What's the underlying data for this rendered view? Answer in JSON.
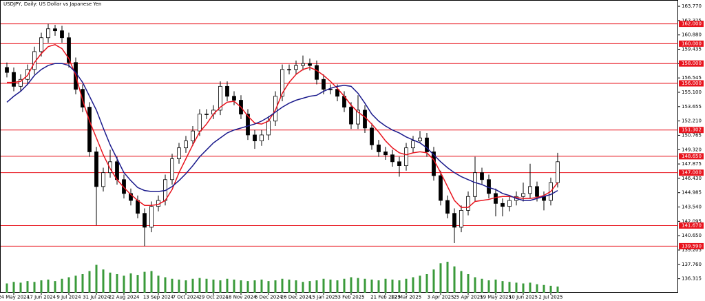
{
  "chart_data": {
    "type": "candlestick",
    "title": "USDJPY, Daily:  US Dollar vs Japanese Yen",
    "categories": [
      null,
      "24 May 2024",
      null,
      null,
      null,
      "17 Jun 2024",
      null,
      null,
      null,
      "9 Jul 2024",
      null,
      null,
      null,
      "31 Jul 2024",
      null,
      null,
      null,
      "22 Aug 2024",
      null,
      null,
      null,
      null,
      "13 Sep 2024",
      null,
      null,
      null,
      "7 Oct 2024",
      null,
      null,
      null,
      "29 Oct 2024",
      null,
      null,
      null,
      "18 Nov 2024",
      null,
      null,
      null,
      "6 Dec 2024",
      null,
      null,
      null,
      "26 Dec 2024",
      null,
      null,
      null,
      "15 Jan 2025",
      null,
      null,
      null,
      "3 Feb 2025",
      null,
      null,
      null,
      null,
      "21 Feb 2025",
      null,
      null,
      "12 Mar 2025",
      null,
      null,
      null,
      null,
      "3 Apr 2025",
      null,
      null,
      null,
      "25 Apr 2025",
      null,
      null,
      null,
      "19 May 2025",
      null,
      null,
      null,
      "10 Jun 2025",
      null,
      null,
      null,
      "2 Jul 2025",
      null
    ],
    "open": [
      157.6,
      157.1,
      155.7,
      156.4,
      157.4,
      159.2,
      160.6,
      161.5,
      161.3,
      160.6,
      158.1,
      155.4,
      153.6,
      149.1,
      145.6,
      147.0,
      148.1,
      146.3,
      144.9,
      144.2,
      142.9,
      141.5,
      143.6,
      144.2,
      146.3,
      148.4,
      149.5,
      150.2,
      151.2,
      152.9,
      152.9,
      153.3,
      155.7,
      154.7,
      154.3,
      152.9,
      150.8,
      150.2,
      150.8,
      152.2,
      154.7,
      157.4,
      157.4,
      157.8,
      158.0,
      157.8,
      156.4,
      155.4,
      155.4,
      154.7,
      153.6,
      151.9,
      153.3,
      151.5,
      149.8,
      149.1,
      148.8,
      148.1,
      147.7,
      149.5,
      150.2,
      150.5,
      149.1,
      146.7,
      144.2,
      142.9,
      141.5,
      143.2,
      144.6,
      147.0,
      146.3,
      144.9,
      143.9,
      143.6,
      144.2,
      144.6,
      144.9,
      145.6,
      144.6,
      144.2,
      146.0
    ],
    "high": [
      158.1,
      157.6,
      156.9,
      157.9,
      159.7,
      161.1,
      162.0,
      161.9,
      161.8,
      161.1,
      158.6,
      155.9,
      154.1,
      149.6,
      147.5,
      149.3,
      148.6,
      146.8,
      145.4,
      144.7,
      143.4,
      144.1,
      144.7,
      146.8,
      148.9,
      150.0,
      150.7,
      151.7,
      153.4,
      153.4,
      153.8,
      156.2,
      156.2,
      155.2,
      154.8,
      153.4,
      151.3,
      151.3,
      152.7,
      155.2,
      157.9,
      157.9,
      158.3,
      158.8,
      158.5,
      158.3,
      156.9,
      155.9,
      155.9,
      155.2,
      154.1,
      154.8,
      153.8,
      152.0,
      150.3,
      149.6,
      149.3,
      148.6,
      150.0,
      150.7,
      151.2,
      151.0,
      149.6,
      147.2,
      144.7,
      143.4,
      143.7,
      145.1,
      148.6,
      147.5,
      146.8,
      145.4,
      144.4,
      144.7,
      145.1,
      146.0,
      147.9,
      146.1,
      145.1,
      146.5,
      149.0
    ],
    "low": [
      156.6,
      155.2,
      155.2,
      155.9,
      156.9,
      158.7,
      160.1,
      160.8,
      160.1,
      157.6,
      154.9,
      153.1,
      148.6,
      141.7,
      145.1,
      146.5,
      145.8,
      144.4,
      143.7,
      142.4,
      139.6,
      141.0,
      143.1,
      143.7,
      145.8,
      147.9,
      149.0,
      149.7,
      150.7,
      152.4,
      152.4,
      152.8,
      154.2,
      153.8,
      152.4,
      150.3,
      149.4,
      149.7,
      150.3,
      151.7,
      154.2,
      156.9,
      156.9,
      157.3,
      157.3,
      155.9,
      154.9,
      154.9,
      154.2,
      153.1,
      151.4,
      151.4,
      151.0,
      149.3,
      148.6,
      148.3,
      147.6,
      146.6,
      147.2,
      149.0,
      150.0,
      148.6,
      146.2,
      143.7,
      142.4,
      139.9,
      141.0,
      142.7,
      144.1,
      145.8,
      144.4,
      142.6,
      142.6,
      143.1,
      143.7,
      144.1,
      144.4,
      144.1,
      143.2,
      143.7,
      145.5
    ],
    "close": [
      157.1,
      155.7,
      156.4,
      157.4,
      159.2,
      160.6,
      161.5,
      161.3,
      160.6,
      158.1,
      155.4,
      153.6,
      149.1,
      145.6,
      147.0,
      148.1,
      146.3,
      144.9,
      144.2,
      142.9,
      141.5,
      143.6,
      144.2,
      146.3,
      148.4,
      149.5,
      150.2,
      151.2,
      152.9,
      152.9,
      153.3,
      155.7,
      154.7,
      154.3,
      152.9,
      150.8,
      150.2,
      150.8,
      152.2,
      154.7,
      157.4,
      157.4,
      157.8,
      158.0,
      157.8,
      156.4,
      155.4,
      155.4,
      154.7,
      153.6,
      151.9,
      153.3,
      151.5,
      149.8,
      149.1,
      148.8,
      148.1,
      147.7,
      149.5,
      150.2,
      150.5,
      149.1,
      146.7,
      144.2,
      142.9,
      141.5,
      143.2,
      144.6,
      147.0,
      146.3,
      144.9,
      143.9,
      143.6,
      144.2,
      144.6,
      144.9,
      145.6,
      144.6,
      144.2,
      146.0,
      148.1
    ],
    "moving_averages": [
      {
        "color": "#e8141e",
        "values": [
          156.1,
          156.1,
          156.2,
          156.8,
          158.1,
          159.0,
          159.7,
          159.9,
          159.5,
          158.5,
          156.8,
          154.3,
          152.2,
          150.5,
          148.8,
          147.4,
          146.3,
          145.5,
          144.8,
          144.2,
          143.7,
          143.7,
          143.8,
          144.2,
          145.3,
          147.0,
          148.4,
          149.8,
          151.1,
          151.9,
          152.9,
          153.6,
          154.1,
          154.2,
          153.6,
          152.7,
          152.0,
          151.9,
          152.2,
          153.3,
          155.0,
          156.1,
          156.9,
          157.4,
          157.6,
          157.3,
          156.8,
          156.2,
          155.5,
          154.7,
          153.8,
          153.1,
          152.6,
          151.9,
          151.1,
          150.2,
          149.5,
          149.0,
          148.8,
          149.0,
          149.1,
          149.0,
          148.3,
          147.0,
          145.6,
          144.2,
          143.5,
          143.5,
          144.1,
          144.2,
          144.3,
          144.5,
          144.6,
          144.6,
          144.5,
          144.4,
          144.4,
          144.5,
          144.7,
          145.1,
          146.0
        ]
      },
      {
        "color": "#1a1a8c",
        "values": [
          154.1,
          154.7,
          155.2,
          155.9,
          156.8,
          157.4,
          157.8,
          158.0,
          158.0,
          157.8,
          157.1,
          156.1,
          154.7,
          153.3,
          151.5,
          149.8,
          148.4,
          147.0,
          146.2,
          145.5,
          145.2,
          145.1,
          145.1,
          145.2,
          145.6,
          146.2,
          146.9,
          147.7,
          148.6,
          149.3,
          150.0,
          150.5,
          151.0,
          151.3,
          151.5,
          151.7,
          151.9,
          152.2,
          152.6,
          153.1,
          153.6,
          154.0,
          154.3,
          154.5,
          154.7,
          154.8,
          155.2,
          155.5,
          155.7,
          155.8,
          155.7,
          155.0,
          154.0,
          152.9,
          152.2,
          151.7,
          151.3,
          151.0,
          150.6,
          150.3,
          150.0,
          149.5,
          148.8,
          148.1,
          147.5,
          147.0,
          146.6,
          146.3,
          146.0,
          145.8,
          145.5,
          145.3,
          144.9,
          144.7,
          144.4,
          144.2,
          144.2,
          144.4,
          144.6,
          144.8,
          145.2
        ]
      }
    ],
    "volume": {
      "color": "#3a9a3a",
      "values": [
        12,
        14,
        13,
        15,
        14,
        16,
        17,
        15,
        18,
        20,
        22,
        24,
        28,
        36,
        30,
        26,
        24,
        22,
        25,
        23,
        27,
        28,
        22,
        20,
        18,
        17,
        16,
        18,
        19,
        18,
        17,
        16,
        18,
        17,
        16,
        15,
        16,
        17,
        15,
        16,
        18,
        17,
        16,
        14,
        15,
        16,
        18,
        17,
        16,
        18,
        20,
        19,
        18,
        17,
        16,
        18,
        17,
        16,
        18,
        20,
        22,
        24,
        30,
        38,
        40,
        34,
        28,
        24,
        20,
        18,
        16,
        17,
        15,
        14,
        13,
        12,
        13,
        11,
        10,
        9,
        8
      ]
    },
    "levels": [
      {
        "value": 162.0,
        "label": "162.000"
      },
      {
        "value": 160.0,
        "label": "160.000"
      },
      {
        "value": 158.0,
        "label": "158.000"
      },
      {
        "value": 156.0,
        "label": "156.000"
      },
      {
        "value": 151.302,
        "label": "151.302"
      },
      {
        "value": 148.65,
        "label": "148.650"
      },
      {
        "value": 147.0,
        "label": "147.000"
      },
      {
        "value": 141.67,
        "label": "141.670"
      },
      {
        "value": 139.59,
        "label": "139.590"
      }
    ],
    "level_color": "#e8141e",
    "ylim": [
      134.9,
      164.4
    ],
    "yticks": [
      {
        "value": 163.77,
        "label": "163.770"
      },
      162.325,
      {
        "value": 160.88,
        "label": "160.880"
      },
      159.435,
      {
        "value": 157.99,
        "label": "157.990"
      },
      156.545,
      {
        "value": 155.1,
        "label": "155.100"
      },
      153.655,
      {
        "value": 152.21,
        "label": "152.210"
      },
      150.765,
      {
        "value": 149.32,
        "label": "149.320"
      },
      147.875,
      {
        "value": 146.43,
        "label": "146.430"
      },
      144.985,
      {
        "value": 143.54,
        "label": "143.540"
      },
      142.095,
      {
        "value": 140.65,
        "label": "140.650"
      },
      139.205,
      {
        "value": 137.76,
        "label": "137.760"
      },
      136.315
    ]
  }
}
